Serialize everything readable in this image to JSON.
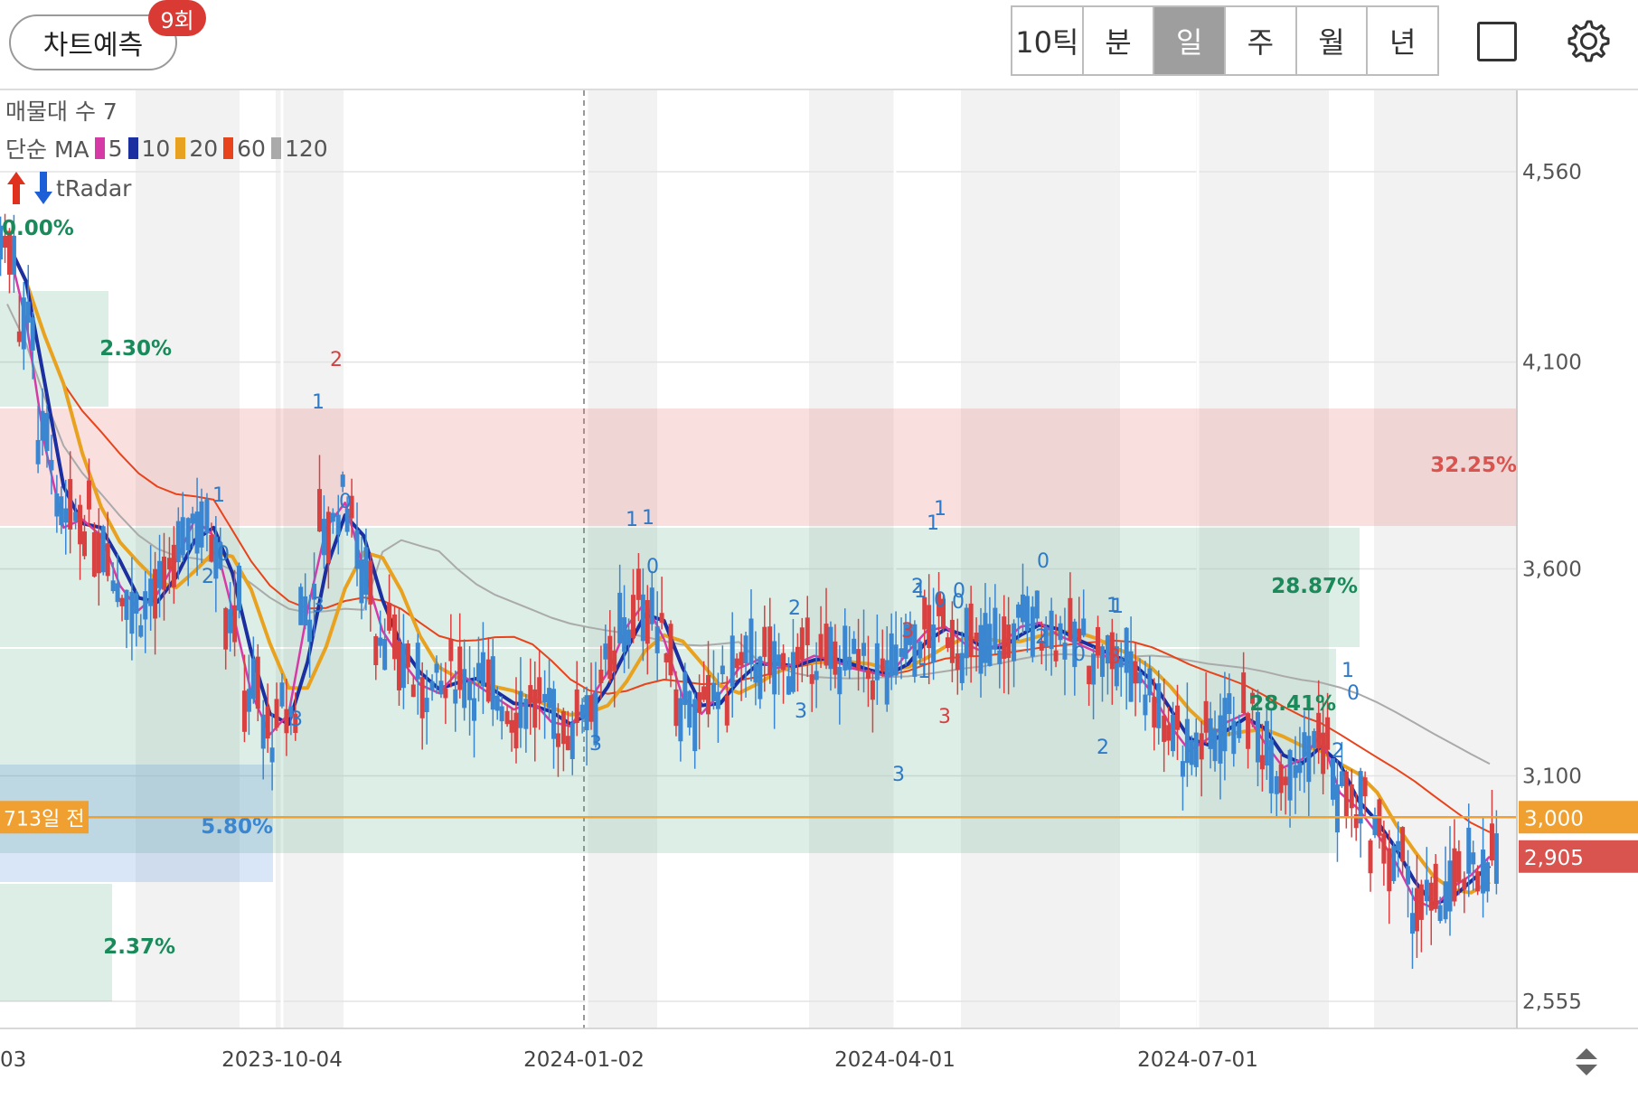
{
  "header": {
    "predict_label": "차트예측",
    "predict_badge": "9회",
    "periods": [
      "10틱",
      "분",
      "일",
      "주",
      "월",
      "년"
    ],
    "active_period": "일",
    "layout_icon": "square-icon",
    "settings_icon": "gear-icon"
  },
  "legend": {
    "volume_profile": "매물대 수 7",
    "ma_type": "단순 MA",
    "ma_periods": [
      {
        "label": "5",
        "color": "#d63aa6"
      },
      {
        "label": "10",
        "color": "#1c2fa0"
      },
      {
        "label": "20",
        "color": "#e8a21f"
      },
      {
        "label": "60",
        "color": "#e8431a"
      },
      {
        "label": "120",
        "color": "#aaaaaa"
      }
    ],
    "radar_label": "tRadar"
  },
  "chart_data": {
    "type": "candlestick",
    "y_ticks": [
      "4,560",
      "4,100",
      "3,600",
      "3,100",
      "2,555"
    ],
    "y_tick_values": [
      4560,
      4100,
      3600,
      3100,
      2555
    ],
    "x_ticks": [
      "03",
      "2023-10-04",
      "2024-01-02",
      "2024-04-01",
      "2024-07-01"
    ],
    "price_labels": [
      {
        "text": "3,000",
        "color": "#f0a030"
      },
      {
        "text": "2,905",
        "color": "#d9534f"
      }
    ],
    "reference_label": "713일 전",
    "zones": [
      {
        "label": "0.00%",
        "color": "#1a8a5a"
      },
      {
        "label": "2.30%",
        "color": "#1a8a5a"
      },
      {
        "label": "32.25%",
        "color": "#d9534f"
      },
      {
        "label": "28.87%",
        "color": "#1a8a5a"
      },
      {
        "label": "28.41%",
        "color": "#1a8a5a"
      },
      {
        "label": "5.80%",
        "color": "#3a86d0"
      },
      {
        "label": "2.37%",
        "color": "#1a8a5a"
      }
    ],
    "signal_marks": [
      "1",
      "1",
      "0",
      "2",
      "2",
      "0",
      "1",
      "3",
      "3",
      "1",
      "2",
      "1",
      "0",
      "3",
      "3",
      "1",
      "0",
      "2",
      "3",
      "1",
      "2",
      "1",
      "0",
      "0",
      "0",
      "1",
      "0",
      "3",
      "2",
      "1",
      "1",
      "0",
      "2",
      "3",
      "3"
    ],
    "up_color": "#d94040",
    "down_color": "#3a86d0",
    "ma_colors": {
      "ma5": "#d63aa6",
      "ma10": "#1c2fa0",
      "ma20": "#e8a21f",
      "ma60": "#e8431a",
      "ma120": "#aaaaaa"
    },
    "closing_trend": [
      4390,
      4200,
      3900,
      3700,
      3720,
      3680,
      3560,
      3500,
      3540,
      3620,
      3720,
      3680,
      3500,
      3300,
      3200,
      3250,
      3500,
      3700,
      3760,
      3600,
      3450,
      3380,
      3320,
      3300,
      3350,
      3320,
      3290,
      3260,
      3280,
      3230,
      3220,
      3280,
      3350,
      3460,
      3520,
      3430,
      3290,
      3250,
      3300,
      3360,
      3380,
      3360,
      3370,
      3390,
      3380,
      3360,
      3350,
      3340,
      3400,
      3450,
      3460,
      3420,
      3400,
      3420,
      3460,
      3470,
      3440,
      3420,
      3400,
      3380,
      3360,
      3300,
      3220,
      3160,
      3190,
      3230,
      3250,
      3180,
      3120,
      3140,
      3200,
      3060,
      3020,
      2960,
      2890,
      2800,
      2780,
      2830,
      2860,
      2905
    ]
  }
}
